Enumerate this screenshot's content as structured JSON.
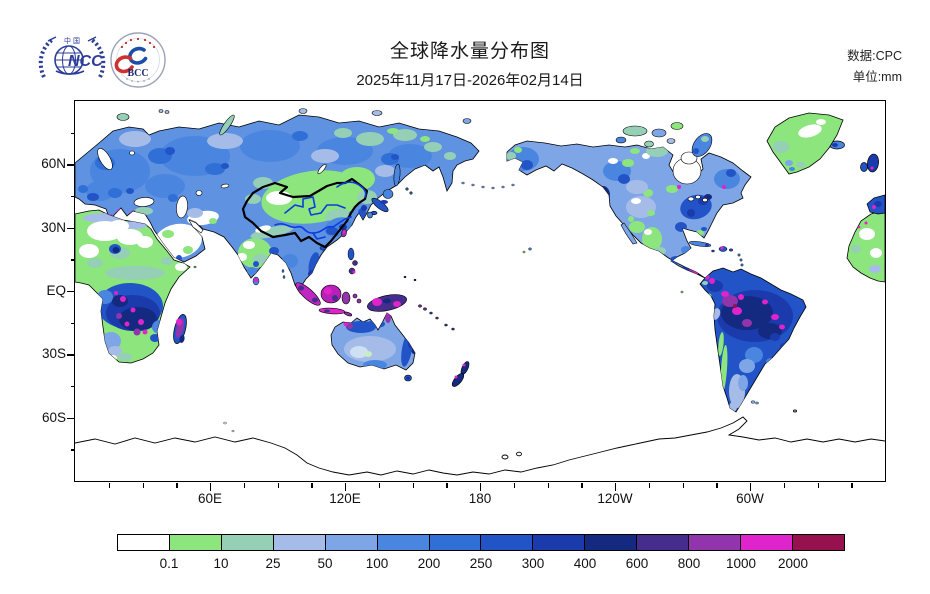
{
  "header": {
    "title": "全球降水量分布图",
    "subtitle": "2025年11月17日-2026年02月14日",
    "source_line1": "数据:CPC",
    "source_line2": "单位:mm",
    "logo_ncc_text": "NCC",
    "logo_ncc_top_text": "中 国",
    "logo_bcc_text": "BCC"
  },
  "axes": {
    "lat_ticks": [
      {
        "deg": 60,
        "label": "60N"
      },
      {
        "deg": 30,
        "label": "30N"
      },
      {
        "deg": 0,
        "label": "EQ"
      },
      {
        "deg": -30,
        "label": "30S"
      },
      {
        "deg": -60,
        "label": "60S"
      }
    ],
    "lon_ticks": [
      {
        "deg": 60,
        "label": "60E"
      },
      {
        "deg": 120,
        "label": "120E"
      },
      {
        "deg": 180,
        "label": "180"
      },
      {
        "deg": 240,
        "label": "120W"
      },
      {
        "deg": 300,
        "label": "60W"
      }
    ],
    "minor_step_deg": 15
  },
  "colorbar": {
    "labels": [
      "0.1",
      "10",
      "25",
      "50",
      "100",
      "200",
      "250",
      "300",
      "400",
      "600",
      "800",
      "1000",
      "2000"
    ],
    "colors": [
      "#ffffff",
      "#8de57d",
      "#95cfb5",
      "#a6bce8",
      "#7ea6e6",
      "#4a86e0",
      "#2f6fd6",
      "#2254c8",
      "#1b3aab",
      "#132a80",
      "#452d8e",
      "#9234ac",
      "#de24ca",
      "#97114f"
    ]
  },
  "chart_data": {
    "type": "heatmap",
    "title": "全球降水量分布图",
    "period": "2025年11月17日-2026年02月14日",
    "data_source": "CPC",
    "units": "mm",
    "projection": "equirectangular, global 0-360E, 90N-90S, land-only shading",
    "x_tick_labels": [
      "60E",
      "120E",
      "180",
      "120W",
      "60W"
    ],
    "y_tick_labels": [
      "60N",
      "30N",
      "EQ",
      "30S",
      "60S"
    ],
    "legend_boundaries_mm": [
      0.1,
      10,
      25,
      50,
      100,
      200,
      250,
      300,
      400,
      600,
      800,
      1000,
      2000
    ],
    "legend_colors": [
      "#ffffff",
      "#8de57d",
      "#95cfb5",
      "#a6bce8",
      "#7ea6e6",
      "#4a86e0",
      "#2f6fd6",
      "#2254c8",
      "#1b3aab",
      "#132a80",
      "#452d8e",
      "#9234ac",
      "#de24ca",
      "#97114f"
    ],
    "overlays": [
      "China national border drawn with thick black line",
      "Yellow River and Yangtze River drawn in blue"
    ],
    "regions_summary": [
      {
        "region": "Northern Europe / Russia / Siberia",
        "precip_mm": "50-300"
      },
      {
        "region": "Northeast Siberia",
        "precip_mm": "10-50"
      },
      {
        "region": "China / Mongolia / Central Asia",
        "precip_mm": "0.1-25, Tarim basin <0.1"
      },
      {
        "region": "Southeast China / Japan",
        "precip_mm": "100-400"
      },
      {
        "region": "India",
        "precip_mm": "0.1-25, coastal spots 100-400"
      },
      {
        "region": "Arabian Peninsula / Sahara",
        "precip_mm": "0-10"
      },
      {
        "region": "Central & Southern Africa",
        "precip_mm": "250-800, spots 1000-2000+"
      },
      {
        "region": "Madagascar",
        "precip_mm": "600-2000"
      },
      {
        "region": "Indonesia / New Guinea",
        "precip_mm": "800-2000+"
      },
      {
        "region": "Australia",
        "precip_mm": "25-300, north 200-400"
      },
      {
        "region": "New Zealand",
        "precip_mm": "300-600"
      },
      {
        "region": "Alaska / western Canada",
        "precip_mm": "100-300"
      },
      {
        "region": "Pacific Northwest coast",
        "precip_mm": "600-2000"
      },
      {
        "region": "Central USA",
        "precip_mm": "25-100"
      },
      {
        "region": "Eastern USA",
        "precip_mm": "200-400"
      },
      {
        "region": "Greenland",
        "precip_mm": "0.1-25"
      },
      {
        "region": "Amazon Basin",
        "precip_mm": "300-600, spots 1000-2000"
      },
      {
        "region": "Patagonia",
        "precip_mm": "25-50"
      },
      {
        "region": "Antarctica",
        "precip_mm": "blank (outline only)"
      }
    ]
  }
}
